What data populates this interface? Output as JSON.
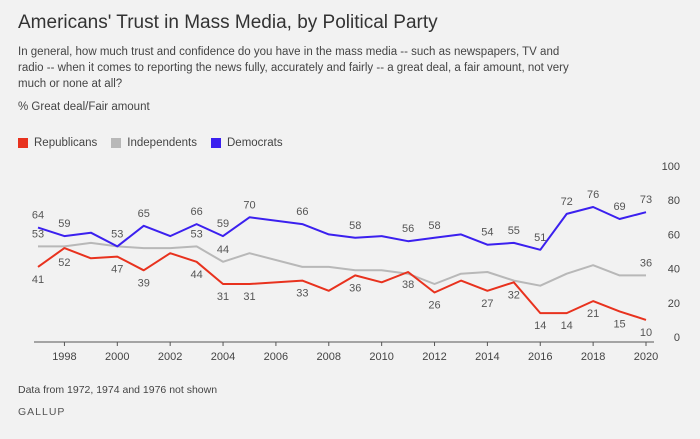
{
  "header": {
    "title": "Americans' Trust in Mass Media, by Political Party",
    "subtitle": "In general, how much trust and confidence do you have in the mass media -- such as newspapers, TV and radio -- when it comes to reporting the news fully, accurately and fairly -- a great deal, a fair amount, not very much or none at all?",
    "measure": "% Great deal/Fair amount"
  },
  "footer": {
    "note": "Data from 1972, 1974 and 1976 not shown",
    "source": "GALLUP"
  },
  "colors": {
    "republicans": "#e8321e",
    "independents": "#b8b8b8",
    "democrats": "#3b20ef",
    "axis": "#555555",
    "grid": "#d9d9d9"
  },
  "chart_data": {
    "type": "line",
    "x": [
      1997,
      1998,
      1999,
      2000,
      2001,
      2002,
      2003,
      2004,
      2005,
      2007,
      2008,
      2009,
      2010,
      2011,
      2012,
      2013,
      2014,
      2015,
      2016,
      2017,
      2018,
      2019,
      2020
    ],
    "series": [
      {
        "name": "Republicans",
        "values": [
          41,
          52,
          46,
          47,
          39,
          49,
          44,
          31,
          31,
          33,
          27,
          36,
          32,
          38,
          26,
          33,
          27,
          32,
          14,
          14,
          21,
          15,
          10
        ],
        "labels": [
          41,
          52,
          null,
          47,
          39,
          null,
          44,
          31,
          31,
          33,
          null,
          36,
          null,
          38,
          26,
          null,
          27,
          32,
          14,
          14,
          21,
          15,
          10
        ]
      },
      {
        "name": "Independents",
        "values": [
          53,
          53,
          55,
          53,
          52,
          52,
          53,
          44,
          49,
          41,
          41,
          39,
          39,
          37,
          31,
          37,
          38,
          33,
          30,
          37,
          42,
          36,
          36
        ],
        "labels": [
          53,
          null,
          null,
          null,
          null,
          null,
          53,
          44,
          null,
          null,
          null,
          null,
          null,
          null,
          null,
          null,
          null,
          null,
          null,
          null,
          null,
          null,
          36
        ]
      },
      {
        "name": "Democrats",
        "values": [
          64,
          59,
          61,
          53,
          65,
          59,
          66,
          59,
          70,
          66,
          60,
          58,
          59,
          56,
          58,
          60,
          54,
          55,
          51,
          72,
          76,
          69,
          73
        ],
        "labels": [
          64,
          59,
          null,
          53,
          65,
          null,
          66,
          59,
          70,
          66,
          null,
          58,
          null,
          56,
          58,
          null,
          54,
          55,
          51,
          72,
          76,
          69,
          73
        ]
      }
    ],
    "xticks": [
      1998,
      2000,
      2002,
      2004,
      2006,
      2008,
      2010,
      2012,
      2014,
      2016,
      2018,
      2020
    ],
    "yticks": [
      0,
      20,
      40,
      60,
      80,
      100
    ],
    "ylim": [
      0,
      100
    ],
    "xlim": [
      1997,
      2020
    ],
    "grid": false,
    "legend_position": "top-left"
  }
}
